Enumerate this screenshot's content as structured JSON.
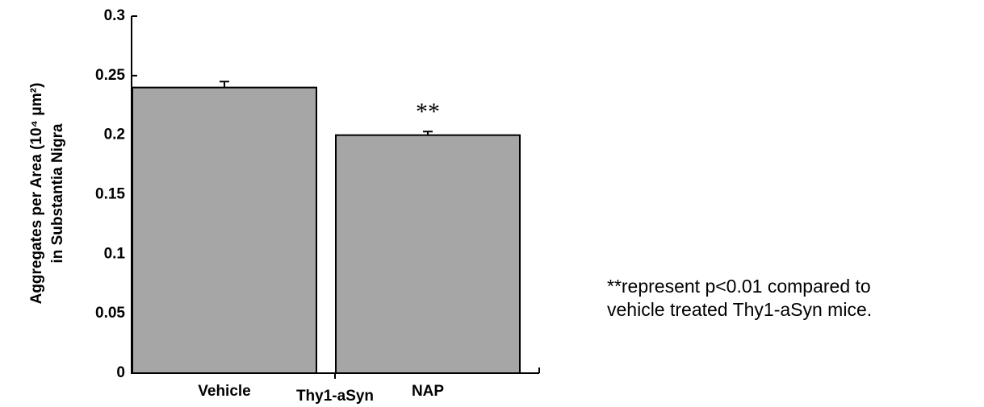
{
  "chart_data": {
    "type": "bar",
    "y_label": [
      "Aggregates per Area (10⁴ μm²)",
      "in Substantia Nigra"
    ],
    "x_label": "Thy1-aSyn",
    "categories": [
      "Vehicle",
      "NAP"
    ],
    "values": [
      0.24,
      0.2
    ],
    "errors": [
      0.005,
      0.003
    ],
    "annotations": [
      null,
      "**"
    ],
    "color": "#a6a6a6",
    "ylim": [
      0,
      0.3
    ],
    "yticks": [
      0,
      0.05,
      0.1,
      0.15,
      0.2,
      0.25,
      0.3
    ],
    "note": [
      "**represent p<0.01 compared to",
      "vehicle treated Thy1-aSyn mice."
    ]
  }
}
